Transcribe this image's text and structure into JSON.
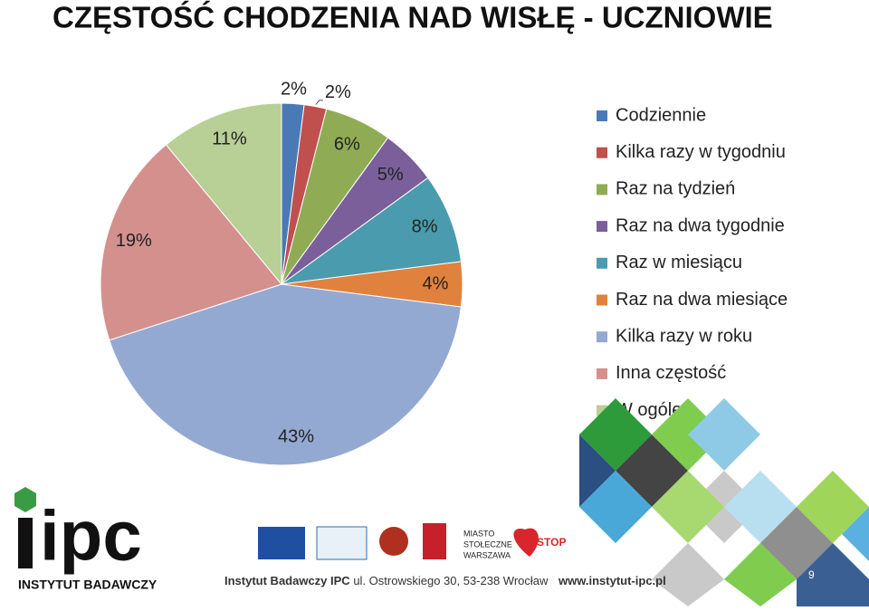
{
  "chart_data": {
    "type": "pie",
    "title": "CZĘSTOŚĆ CHODZENIA NAD WISŁĘ - UCZNIOWIE",
    "categories": [
      "Codziennie",
      "Kilka razy w tygodniu",
      "Raz na tydzień",
      "Raz na dwa tygodnie",
      "Raz w miesiącu",
      "Raz na dwa miesiące",
      "Kilka razy w roku",
      "Inna częstość",
      "W ogóle"
    ],
    "values": [
      2,
      2,
      6,
      5,
      8,
      4,
      43,
      19,
      11
    ],
    "value_labels": [
      "2%",
      "2%",
      "6%",
      "5%",
      "8%",
      "4%",
      "43%",
      "19%",
      "11%"
    ],
    "colors": [
      "#4a7ab5",
      "#c0504d",
      "#8fac55",
      "#7a5f9a",
      "#4a9bad",
      "#e0823d",
      "#94a9d2",
      "#d4908d",
      "#b8cf95"
    ],
    "legend": "right"
  },
  "footer": {
    "logo_text": "ipc",
    "logo_subtitle": "INSTYTUT BADAWCZY",
    "institute": "Instytut Badawczy IPC",
    "address": "ul. Ostrowskiego 30, 53-238 Wrocław",
    "website": "www.instytut-ipc.pl",
    "page": "9",
    "city_logo": [
      "MIASTO",
      "STOŁECZNE",
      "WARSZAWA"
    ],
    "stop_logo": "STOP"
  }
}
